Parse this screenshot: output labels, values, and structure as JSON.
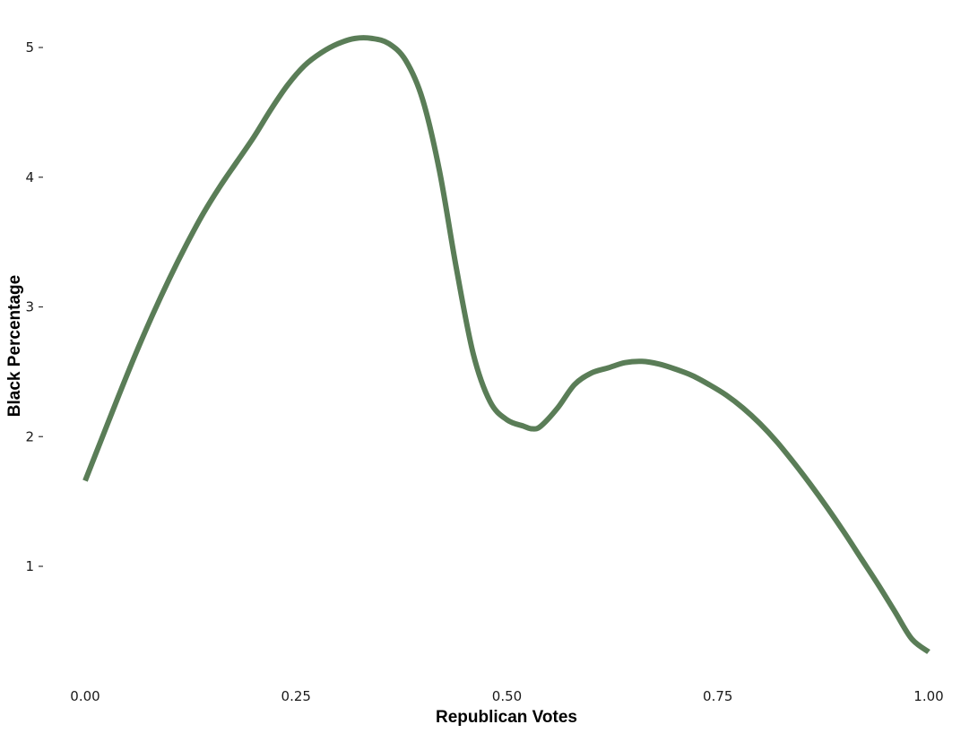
{
  "chart_data": {
    "type": "line",
    "xlabel": "Republican Votes",
    "ylabel": "Black Percentage",
    "xlim": [
      0,
      1
    ],
    "ylim": [
      0.3,
      5.2
    ],
    "grid": false,
    "x_ticks": [
      {
        "value": 0.0,
        "label": "0.00"
      },
      {
        "value": 0.25,
        "label": "0.25"
      },
      {
        "value": 0.5,
        "label": "0.50"
      },
      {
        "value": 0.75,
        "label": "0.75"
      },
      {
        "value": 1.0,
        "label": "1.00"
      }
    ],
    "y_ticks": [
      {
        "value": 1,
        "label": "1"
      },
      {
        "value": 2,
        "label": "2"
      },
      {
        "value": 3,
        "label": "3"
      },
      {
        "value": 4,
        "label": "4"
      },
      {
        "value": 5,
        "label": "5"
      }
    ],
    "series": [
      {
        "color": "#5a7d57",
        "x": [
          0.0,
          0.02,
          0.04,
          0.06,
          0.08,
          0.1,
          0.12,
          0.14,
          0.16,
          0.18,
          0.2,
          0.22,
          0.24,
          0.26,
          0.28,
          0.3,
          0.32,
          0.34,
          0.36,
          0.38,
          0.4,
          0.42,
          0.44,
          0.46,
          0.48,
          0.5,
          0.52,
          0.53,
          0.54,
          0.56,
          0.58,
          0.6,
          0.62,
          0.64,
          0.66,
          0.68,
          0.7,
          0.72,
          0.74,
          0.76,
          0.78,
          0.8,
          0.82,
          0.84,
          0.86,
          0.88,
          0.9,
          0.92,
          0.94,
          0.96,
          0.98,
          1.0
        ],
        "y": [
          1.66,
          1.99,
          2.32,
          2.64,
          2.94,
          3.22,
          3.48,
          3.72,
          3.93,
          4.12,
          4.31,
          4.52,
          4.71,
          4.86,
          4.96,
          5.03,
          5.07,
          5.07,
          5.03,
          4.9,
          4.6,
          4.05,
          3.3,
          2.64,
          2.27,
          2.13,
          2.08,
          2.06,
          2.08,
          2.22,
          2.4,
          2.49,
          2.53,
          2.57,
          2.58,
          2.56,
          2.52,
          2.47,
          2.4,
          2.32,
          2.22,
          2.1,
          1.96,
          1.8,
          1.63,
          1.45,
          1.26,
          1.06,
          0.86,
          0.65,
          0.44,
          0.34
        ]
      }
    ]
  }
}
